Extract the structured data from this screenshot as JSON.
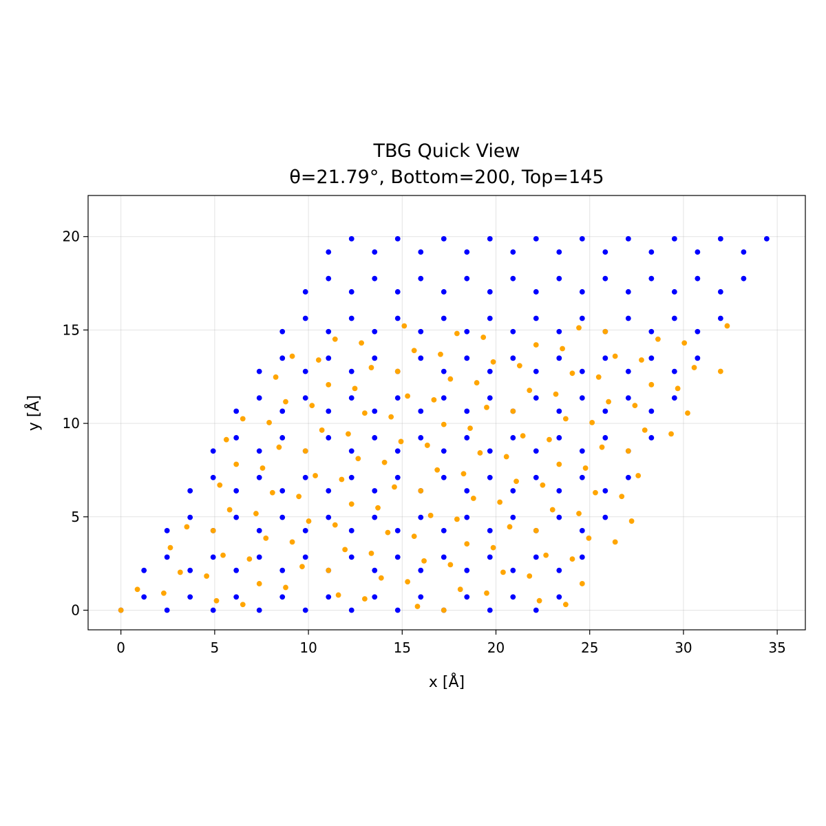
{
  "chart_data": {
    "type": "scatter",
    "title": "TBG Quick View",
    "subtitle": "θ=21.79°, Bottom=200, Top=145",
    "xlabel": "x [Å]",
    "ylabel": "y [Å]",
    "xlim": [
      -1.75,
      36.5
    ],
    "ylim": [
      -1.05,
      22.2
    ],
    "xticks": [
      0,
      5,
      10,
      15,
      20,
      25,
      30,
      35
    ],
    "yticks": [
      0,
      5,
      10,
      15,
      20
    ],
    "grid": true,
    "legend": "none",
    "lattice": {
      "constant": 2.46,
      "bottom_count": 200,
      "top_count": 145,
      "twist_deg": 21.79
    },
    "series": [
      {
        "color": "#0000ff"
      },
      {
        "color": "#ffa500"
      }
    ]
  }
}
